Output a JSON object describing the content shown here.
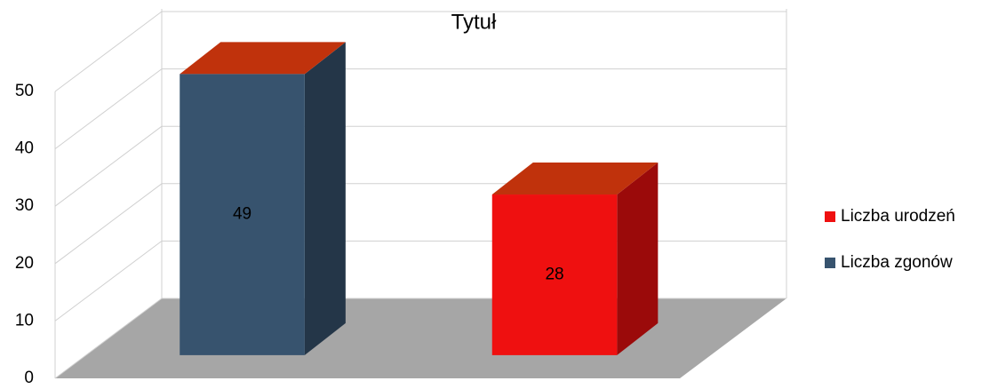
{
  "chart_data": {
    "type": "bar3d",
    "title": "Tytuł",
    "categories": [
      null,
      null
    ],
    "series": [
      {
        "name": "Liczba urodzeń",
        "color": "#ef1010",
        "top_color": "#c0320c",
        "values": [
          null,
          28
        ]
      },
      {
        "name": "Liczba zgonów",
        "color": "#37536e",
        "top_color": "#c0320c",
        "values": [
          49,
          null
        ]
      }
    ],
    "ylim": [
      0,
      50
    ],
    "yticks": [
      0,
      10,
      20,
      30,
      40,
      50
    ],
    "grid": true,
    "legend": "right"
  }
}
